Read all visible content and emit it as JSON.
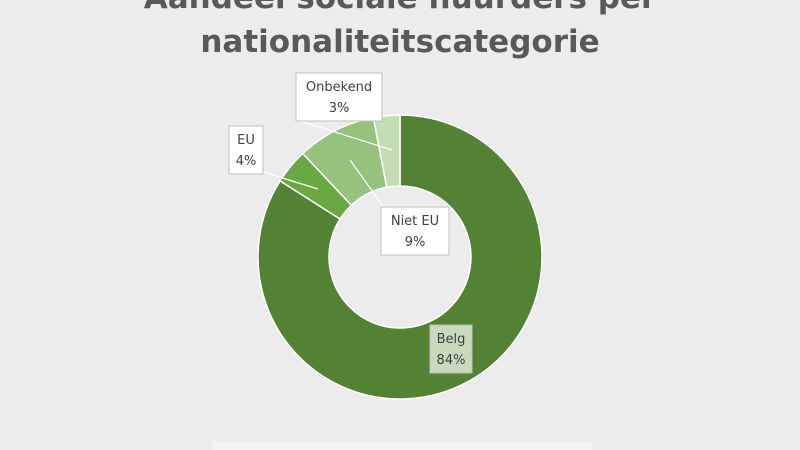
{
  "chart_data": {
    "type": "pie",
    "variant": "donut",
    "title": "Aandeel sociale huurders per nationaliteitscategorie",
    "title_lines": [
      "Aandeel sociale huurders per",
      "nationaliteitscategorie"
    ],
    "categories": [
      "Belg",
      "EU",
      "Niet EU",
      "Onbekend"
    ],
    "values": [
      84,
      4,
      9,
      3
    ],
    "value_labels": [
      "84%",
      "4%",
      "9%",
      "3%"
    ],
    "colors": [
      "#548235",
      "#6aa843",
      "#95c27c",
      "#c3dcb4"
    ],
    "legend": "none",
    "data_labels": "callouts"
  }
}
